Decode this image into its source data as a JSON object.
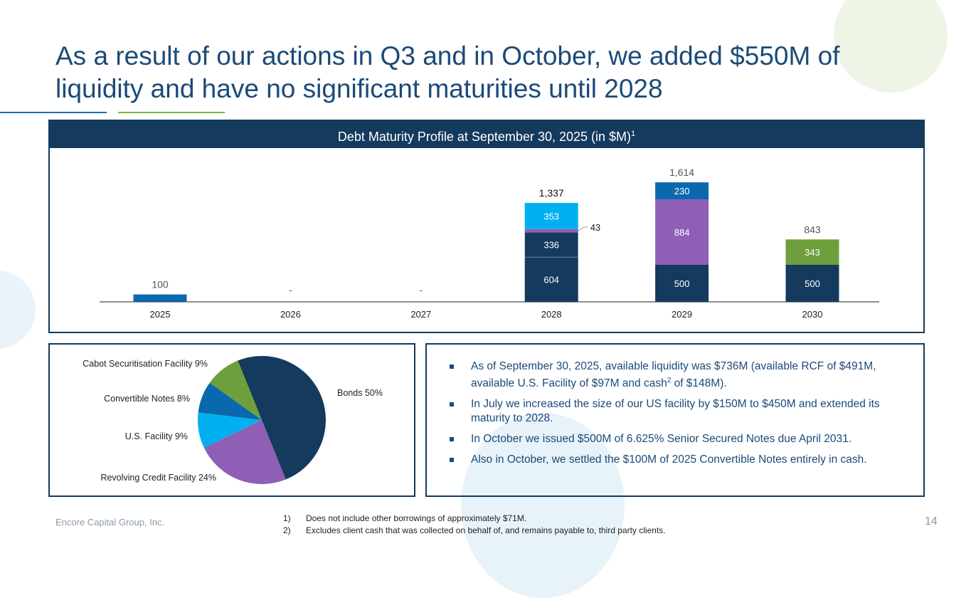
{
  "title": "As a result of our actions in Q3 and in October, we added $550M of liquidity and have no significant maturities until 2028",
  "panel_title": "Debt Maturity Profile at September 30, 2025 (in $M)",
  "panel_title_sup": "1",
  "colors": {
    "Bonds": "#143a5e",
    "Revolving Credit Facility": "#8e5fb5",
    "U.S. Facility": "#00b0f0",
    "Convertible Notes": "#0a68ad",
    "Cabot Securitisation Facility": "#6e9f3c"
  },
  "chart_data": [
    {
      "type": "bar",
      "stacked": true,
      "categories": [
        "2025",
        "2026",
        "2027",
        "2028",
        "2029",
        "2030"
      ],
      "totals": [
        "100",
        "-",
        "-",
        "1,337",
        "1,614",
        "843"
      ],
      "segments": [
        [
          {
            "series": "Convertible Notes",
            "value": 100
          }
        ],
        [],
        [],
        [
          {
            "series": "Bonds",
            "value": 604
          },
          {
            "series": "Bonds",
            "value": 336
          },
          {
            "series": "Revolving Credit Facility",
            "value": 43
          },
          {
            "series": "U.S. Facility",
            "value": 353
          }
        ],
        [
          {
            "series": "Bonds",
            "value": 500
          },
          {
            "series": "Revolving Credit Facility",
            "value": 884
          },
          {
            "series": "Convertible Notes",
            "value": 230
          }
        ],
        [
          {
            "series": "Bonds",
            "value": 500
          },
          {
            "series": "Cabot Securitisation Facility",
            "value": 343
          }
        ]
      ]
    },
    {
      "type": "pie",
      "slices": [
        {
          "label": "Bonds 50%",
          "series": "Bonds",
          "value": 50
        },
        {
          "label": "Revolving Credit Facility 24%",
          "series": "Revolving Credit Facility",
          "value": 24
        },
        {
          "label": "U.S. Facility 9%",
          "series": "U.S. Facility",
          "value": 9
        },
        {
          "label": "Convertible Notes 8%",
          "series": "Convertible Notes",
          "value": 8
        },
        {
          "label": "Cabot Securitisation Facility 9%",
          "series": "Cabot Securitisation Facility",
          "value": 9
        }
      ]
    }
  ],
  "bullets": [
    {
      "pre": "As of September 30, 2025, available liquidity was $736M (available RCF of $491M, available U.S. Facility of $97M and cash",
      "sup": "2",
      "post": " of $148M)."
    },
    {
      "pre": "In July we increased the size of our US facility by $150M to $450M and extended its maturity to 2028.",
      "sup": "",
      "post": ""
    },
    {
      "pre": "In October we issued $500M of 6.625% Senior Secured Notes due April 2031.",
      "sup": "",
      "post": ""
    },
    {
      "pre": "Also in October, we settled the $100M of 2025 Convertible Notes entirely in cash.",
      "sup": "",
      "post": ""
    }
  ],
  "footer": "Encore Capital Group, Inc.",
  "page_number": "14",
  "notes": [
    {
      "n": "1)",
      "text": "Does not include other borrowings of approximately $71M."
    },
    {
      "n": "2)",
      "text": "Excludes client cash that was collected on behalf of, and remains payable to, third party clients."
    }
  ]
}
